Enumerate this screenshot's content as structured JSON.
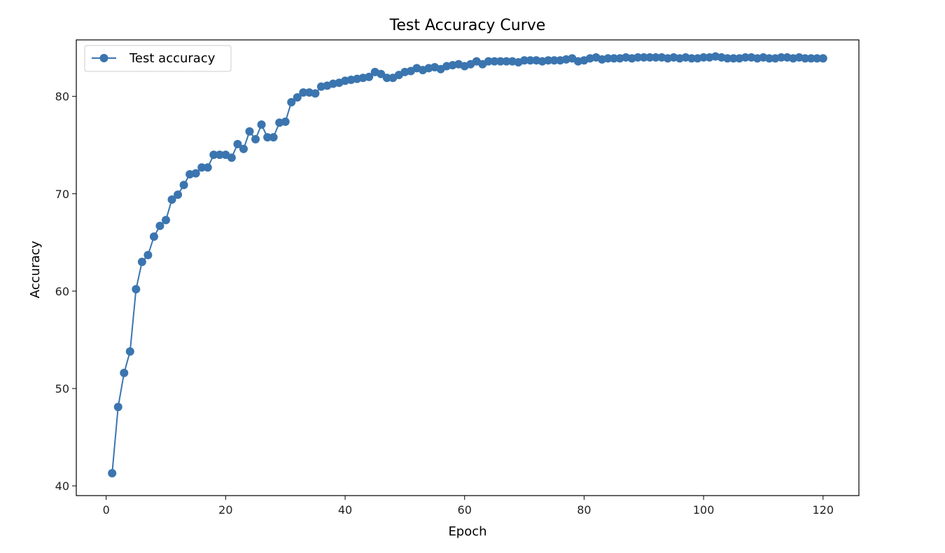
{
  "chart_data": {
    "type": "line",
    "title": "Test Accuracy Curve",
    "xlabel": "Epoch",
    "ylabel": "Accuracy",
    "xlim": [
      -5,
      126
    ],
    "ylim": [
      39,
      85.8
    ],
    "xticks": [
      0,
      20,
      40,
      60,
      80,
      100,
      120
    ],
    "yticks": [
      40,
      50,
      60,
      70,
      80
    ],
    "grid": false,
    "legend": "top-left",
    "color": "#3b75af",
    "marker": "circle",
    "x": [
      1,
      2,
      3,
      4,
      5,
      6,
      7,
      8,
      9,
      10,
      11,
      12,
      13,
      14,
      15,
      16,
      17,
      18,
      19,
      20,
      21,
      22,
      23,
      24,
      25,
      26,
      27,
      28,
      29,
      30,
      31,
      32,
      33,
      34,
      35,
      36,
      37,
      38,
      39,
      40,
      41,
      42,
      43,
      44,
      45,
      46,
      47,
      48,
      49,
      50,
      51,
      52,
      53,
      54,
      55,
      56,
      57,
      58,
      59,
      60,
      61,
      62,
      63,
      64,
      65,
      66,
      67,
      68,
      69,
      70,
      71,
      72,
      73,
      74,
      75,
      76,
      77,
      78,
      79,
      80,
      81,
      82,
      83,
      84,
      85,
      86,
      87,
      88,
      89,
      90,
      91,
      92,
      93,
      94,
      95,
      96,
      97,
      98,
      99,
      100,
      101,
      102,
      103,
      104,
      105,
      106,
      107,
      108,
      109,
      110,
      111,
      112,
      113,
      114,
      115,
      116,
      117,
      118,
      119,
      120
    ],
    "series": [
      {
        "name": "Test accuracy",
        "values": [
          41.3,
          48.1,
          51.6,
          53.8,
          60.2,
          63.0,
          63.7,
          65.6,
          66.7,
          67.3,
          69.4,
          69.9,
          70.9,
          72.0,
          72.1,
          72.7,
          72.7,
          74.0,
          74.0,
          74.0,
          73.7,
          75.1,
          74.6,
          76.4,
          75.6,
          77.1,
          75.8,
          75.8,
          77.3,
          77.4,
          79.4,
          79.9,
          80.4,
          80.4,
          80.3,
          81.0,
          81.1,
          81.3,
          81.4,
          81.6,
          81.7,
          81.8,
          81.9,
          82.0,
          82.5,
          82.3,
          81.9,
          81.9,
          82.2,
          82.5,
          82.6,
          82.9,
          82.7,
          82.9,
          83.0,
          82.8,
          83.1,
          83.2,
          83.3,
          83.1,
          83.3,
          83.6,
          83.3,
          83.6,
          83.6,
          83.6,
          83.6,
          83.6,
          83.5,
          83.7,
          83.7,
          83.7,
          83.6,
          83.7,
          83.7,
          83.7,
          83.8,
          83.9,
          83.6,
          83.7,
          83.9,
          84.0,
          83.8,
          83.9,
          83.9,
          83.9,
          84.0,
          83.9,
          84.0,
          84.0,
          84.0,
          84.0,
          84.0,
          83.9,
          84.0,
          83.9,
          84.0,
          83.9,
          83.9,
          84.0,
          84.0,
          84.1,
          84.0,
          83.9,
          83.9,
          83.9,
          84.0,
          84.0,
          83.9,
          84.0,
          83.9,
          83.9,
          84.0,
          84.0,
          83.9,
          84.0,
          83.9,
          83.9,
          83.9,
          83.9
        ]
      }
    ]
  }
}
